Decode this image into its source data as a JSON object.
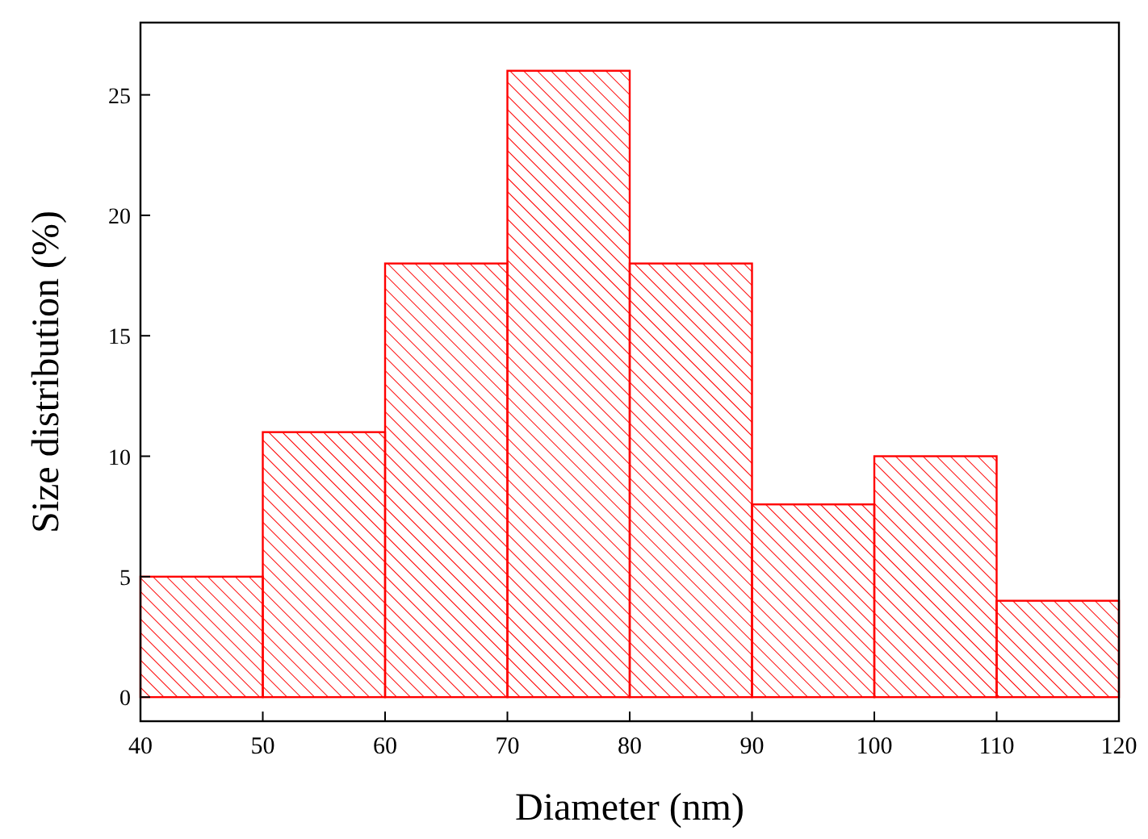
{
  "chart_data": {
    "type": "histogram",
    "xlabel": "Diameter (nm)",
    "ylabel": "Size distribution (%)",
    "bins": [
      40,
      50,
      60,
      70,
      80,
      90,
      100,
      110,
      120
    ],
    "values": [
      5,
      11,
      18,
      26,
      18,
      8,
      10,
      4
    ],
    "color": "#ff0000",
    "xlim": [
      40,
      120
    ],
    "xticks": [
      40,
      50,
      60,
      70,
      80,
      90,
      100,
      110,
      120
    ],
    "ylim": [
      -1,
      28
    ],
    "yticks": [
      0,
      5,
      10,
      15,
      20,
      25
    ]
  }
}
